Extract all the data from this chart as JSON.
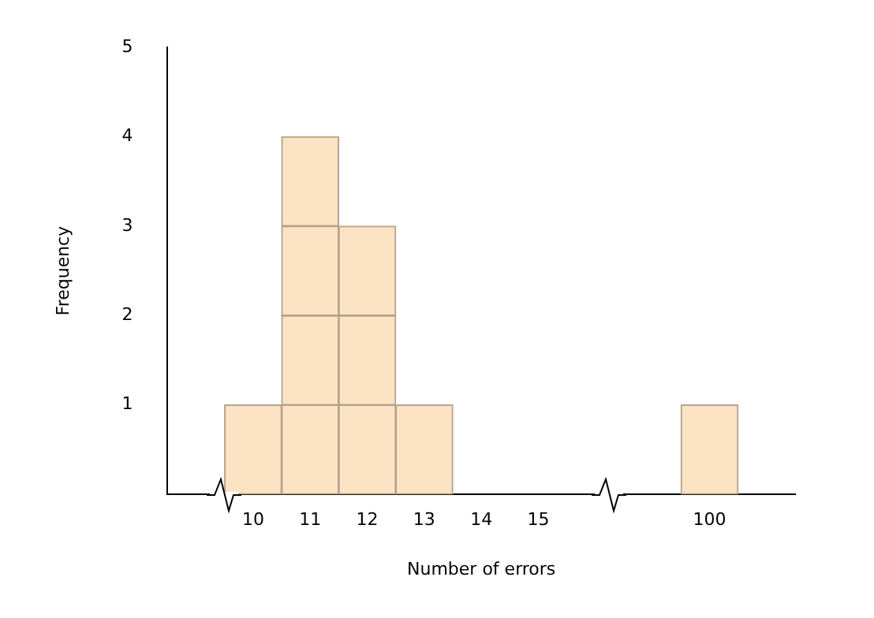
{
  "chart_data": {
    "type": "bar",
    "xlabel": "Number of errors",
    "ylabel": "Frequency",
    "categories": [
      null,
      "10",
      "11",
      "12",
      "13",
      "14",
      "15",
      null,
      null,
      "100",
      null
    ],
    "stacked": true,
    "series": [
      {
        "color": "#fbe3c3",
        "values": [
          null,
          1,
          1,
          1,
          1,
          0,
          0,
          null,
          null,
          1,
          null
        ]
      },
      {
        "color": "#fbe3c3",
        "values": [
          null,
          null,
          1,
          1,
          null,
          null,
          null,
          null,
          null,
          null,
          null
        ]
      },
      {
        "color": "#fbe3c3",
        "values": [
          null,
          null,
          1,
          1,
          null,
          null,
          null,
          null,
          null,
          null,
          null
        ]
      },
      {
        "color": "#fbe3c3",
        "values": [
          null,
          null,
          1,
          null,
          null,
          null,
          null,
          null,
          null,
          null,
          null
        ]
      }
    ],
    "ylim": [
      0,
      5
    ],
    "yticks": [
      1,
      2,
      3,
      4,
      5
    ],
    "grid": false,
    "legend": false
  }
}
